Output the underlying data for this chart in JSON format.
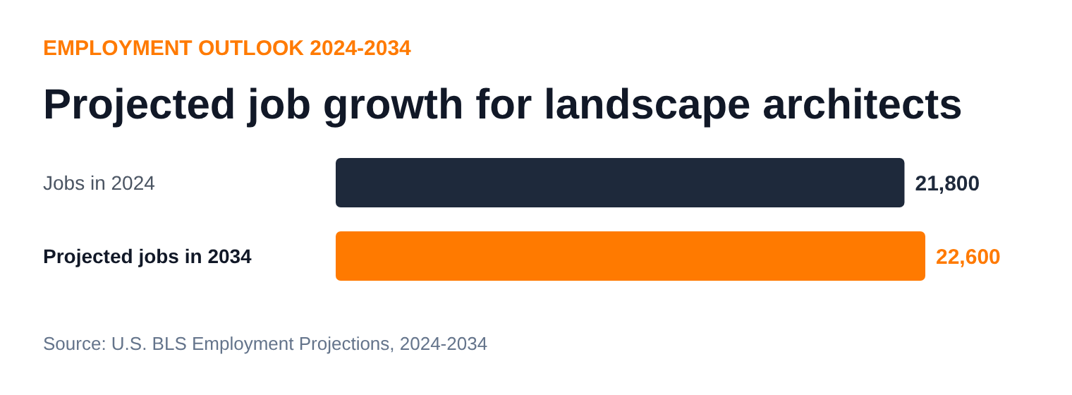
{
  "chart_data": {
    "type": "bar",
    "orientation": "horizontal",
    "subtitle": "EMPLOYMENT OUTLOOK 2024-2034",
    "title": "Projected job growth for landscape architects",
    "categories": [
      "Jobs in 2024",
      "Projected jobs in 2034"
    ],
    "values": [
      21800,
      22600
    ],
    "colors": [
      "#1e293b",
      "#ff7a00"
    ],
    "value_labels": [
      "21,800",
      "22,600"
    ],
    "tick_labels": false,
    "grid": false,
    "annotations": [
      "Source: U.S. BLS Employment Projections, 2024-2034"
    ]
  }
}
